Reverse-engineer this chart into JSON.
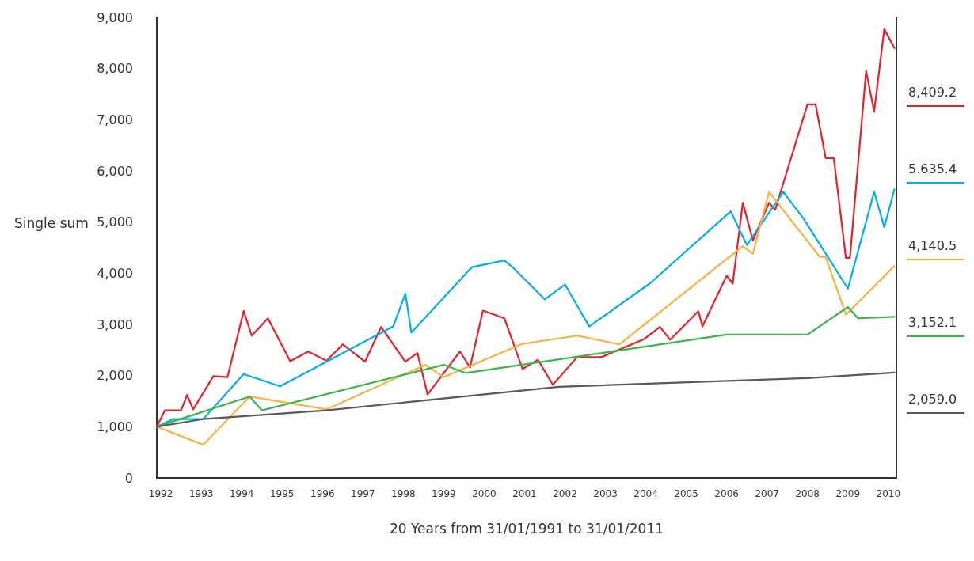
{
  "chart_data": {
    "type": "line",
    "xlabel": "20 Years from 31/01/1991 to 31/01/2011",
    "ylabel": "Single sum",
    "xlim": [
      1991.9,
      2010.2
    ],
    "xticks": [
      1992,
      1993,
      1994,
      1995,
      1996,
      1997,
      1998,
      1999,
      2000,
      2001,
      2002,
      2003,
      2004,
      2005,
      2006,
      2007,
      2008,
      2009,
      2010
    ],
    "ylim": [
      0,
      9000
    ],
    "yticks": [
      0,
      {
        "value": 1000,
        "label": "1,000"
      },
      {
        "value": 2000,
        "label": "2,000"
      },
      {
        "value": 3000,
        "label": "3,000"
      },
      {
        "value": 4000,
        "label": "4,000"
      },
      {
        "value": 5000,
        "label": "5,000"
      },
      {
        "value": 6000,
        "label": "6,000"
      },
      {
        "value": 7000,
        "label": "7,000"
      },
      {
        "value": 8000,
        "label": "8,000"
      },
      {
        "value": 9000,
        "label": "9,000"
      }
    ],
    "grid": false,
    "marker": "none",
    "line_style": "solid",
    "annotations": [
      "8,409.2",
      "5.635.4",
      "4,140.5",
      "3,152.1",
      "2,059.0"
    ],
    "series": [
      {
        "color": "#e8202a",
        "x": [
          1991.9,
          1992.1,
          1992.5,
          1992.65,
          1992.8,
          1993.3,
          1993.65,
          1994.05,
          1994.25,
          1994.65,
          1995.2,
          1995.65,
          1996.1,
          1996.5,
          1997.05,
          1997.45,
          1998.05,
          1998.35,
          1998.6,
          1999.4,
          1999.65,
          1999.97,
          2000.5,
          2000.95,
          2001.33,
          2001.7,
          2002.3,
          2002.9,
          2003.95,
          2004.35,
          2004.6,
          2005.3,
          2005.4,
          2006.0,
          2006.15,
          2006.4,
          2006.65,
          2007.05,
          2007.2,
          2008.0,
          2008.2,
          2008.45,
          2008.65,
          2008.95,
          2009.05,
          2009.45,
          2009.65,
          2009.9,
          2010.15
        ],
        "values": [
          1000,
          1320,
          1320,
          1620,
          1340,
          1990,
          1970,
          3260,
          2780,
          3120,
          2280,
          2470,
          2290,
          2610,
          2270,
          2950,
          2270,
          2440,
          1630,
          2470,
          2160,
          3270,
          3120,
          2130,
          2310,
          1820,
          2360,
          2360,
          2710,
          2950,
          2700,
          3260,
          2960,
          3950,
          3800,
          5380,
          4640,
          5380,
          5240,
          7300,
          7300,
          6250,
          6250,
          4300,
          4300,
          7950,
          7160,
          8770,
          8400
        ]
      },
      {
        "color": "#00aeef",
        "x": [
          1991.9,
          1992.3,
          1993.05,
          1994.05,
          1994.95,
          1997.75,
          1998.05,
          1998.2,
          1999.7,
          2000.5,
          2000.7,
          2001.5,
          2002.0,
          2002.6,
          2004.1,
          2006.1,
          2006.5,
          2007.4,
          2007.9,
          2009.0,
          2009.65,
          2009.9,
          2010.15
        ],
        "values": [
          1000,
          1150,
          1150,
          2030,
          1790,
          2960,
          3600,
          2840,
          4120,
          4250,
          4120,
          3490,
          3780,
          2960,
          3800,
          5210,
          4550,
          5590,
          5070,
          3700,
          5590,
          4900,
          5640
        ]
      },
      {
        "color": "#fbb040",
        "x": [
          1991.9,
          1993.05,
          1994.2,
          1996.1,
          1998.55,
          1999.0,
          2000.95,
          2002.3,
          2003.35,
          2006.4,
          2006.65,
          2007.05,
          2008.3,
          2008.45,
          2008.95,
          2010.15
        ],
        "values": [
          1000,
          650,
          1590,
          1340,
          2210,
          1970,
          2620,
          2780,
          2610,
          4530,
          4380,
          5590,
          4320,
          4320,
          3190,
          4140
        ]
      },
      {
        "color": "#39b54a",
        "x": [
          1991.9,
          1994.2,
          1994.5,
          1999.0,
          1999.55,
          2006.0,
          2008.0,
          2009.0,
          2009.25,
          2010.15
        ],
        "values": [
          1000,
          1590,
          1320,
          2210,
          2050,
          2800,
          2800,
          3340,
          3120,
          3150
        ]
      },
      {
        "color": "#58595b",
        "x": [
          1991.9,
          1993.05,
          1996.1,
          2001.85,
          2008.0,
          2010.15
        ],
        "values": [
          1000,
          1150,
          1320,
          1780,
          1950,
          2060
        ]
      }
    ]
  }
}
